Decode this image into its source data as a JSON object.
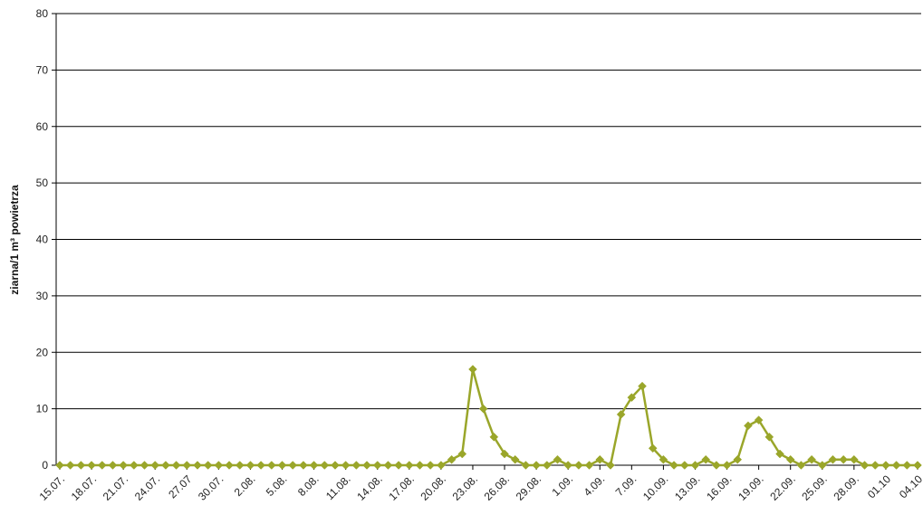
{
  "chart_data": {
    "type": "line",
    "title": "",
    "ylabel": "ziarna/1 m³ powietrza",
    "xlabel": "",
    "ylim": [
      0,
      80
    ],
    "yticks": [
      0,
      10,
      20,
      30,
      40,
      50,
      60,
      70,
      80
    ],
    "grid": "horizontal",
    "legend": "none",
    "series_color": "#9aa62a",
    "marker": "diamond",
    "x_tick_labels": [
      "15.07.",
      "18.07.",
      "21.07.",
      "24.07.",
      "27.07",
      "30.07.",
      "2.08.",
      "5.08.",
      "8.08.",
      "11.08.",
      "14.08.",
      "17.08.",
      "20.08.",
      "23.08.",
      "26.08.",
      "29.08.",
      "1.09.",
      "4.09.",
      "7.09.",
      "10.09.",
      "13.09.",
      "16.09.",
      "19.09.",
      "22.09.",
      "25.09.",
      "28.09.",
      "01.10",
      "04.10"
    ],
    "x_tick_every": 3,
    "series": [
      {
        "values": [
          0,
          0,
          0,
          0,
          0,
          0,
          0,
          0,
          0,
          0,
          0,
          0,
          0,
          0,
          0,
          0,
          0,
          0,
          0,
          0,
          0,
          0,
          0,
          0,
          0,
          0,
          0,
          0,
          0,
          0,
          0,
          0,
          0,
          0,
          0,
          0,
          0,
          1,
          2,
          17,
          10,
          5,
          2,
          1,
          0,
          0,
          0,
          1,
          0,
          0,
          0,
          1,
          0,
          9,
          12,
          14,
          3,
          1,
          0,
          0,
          0,
          1,
          0,
          0,
          1,
          7,
          8,
          5,
          2,
          1,
          0,
          1,
          0,
          1,
          1,
          1,
          0,
          0,
          0,
          0,
          0,
          0
        ]
      }
    ]
  }
}
